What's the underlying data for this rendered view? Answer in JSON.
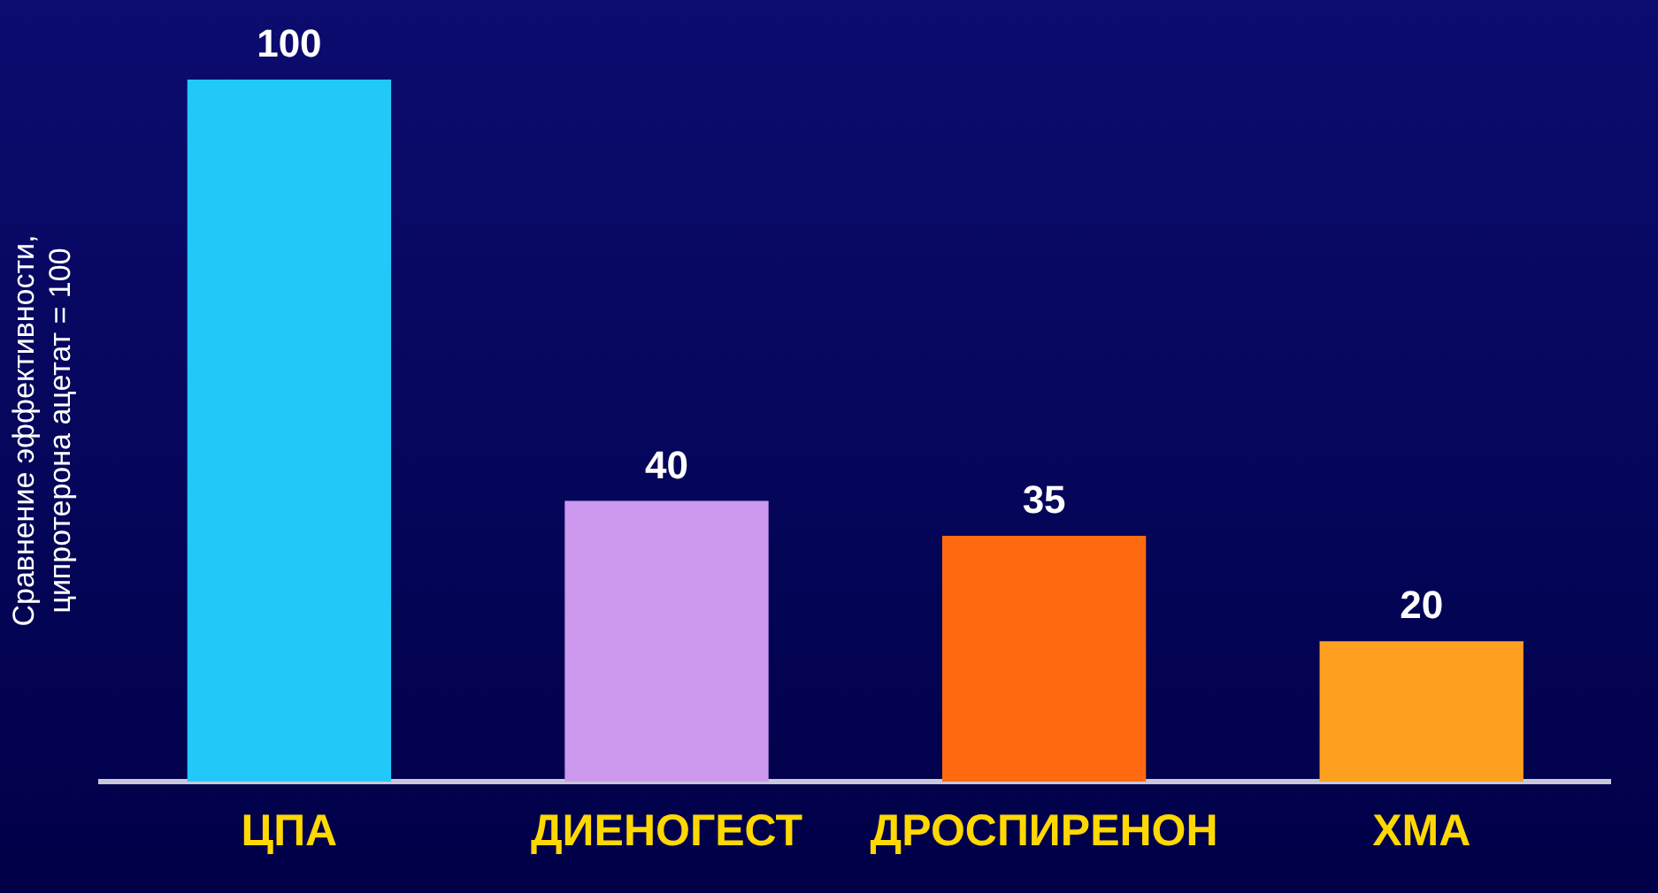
{
  "chart_data": {
    "type": "bar",
    "ylabel": "Сравнение эффективности, ципротерона ацетат = 100",
    "categories": [
      "ЦПА",
      "ДИЕНОГЕСТ",
      "ДРОСПИРЕНОН",
      "ХМА"
    ],
    "values": [
      100,
      40,
      35,
      20
    ],
    "colors": [
      "#22c8f8",
      "#cc99ee",
      "#ff6a10",
      "#ffa020"
    ],
    "data_labels": true,
    "grid": false,
    "legend": false
  }
}
